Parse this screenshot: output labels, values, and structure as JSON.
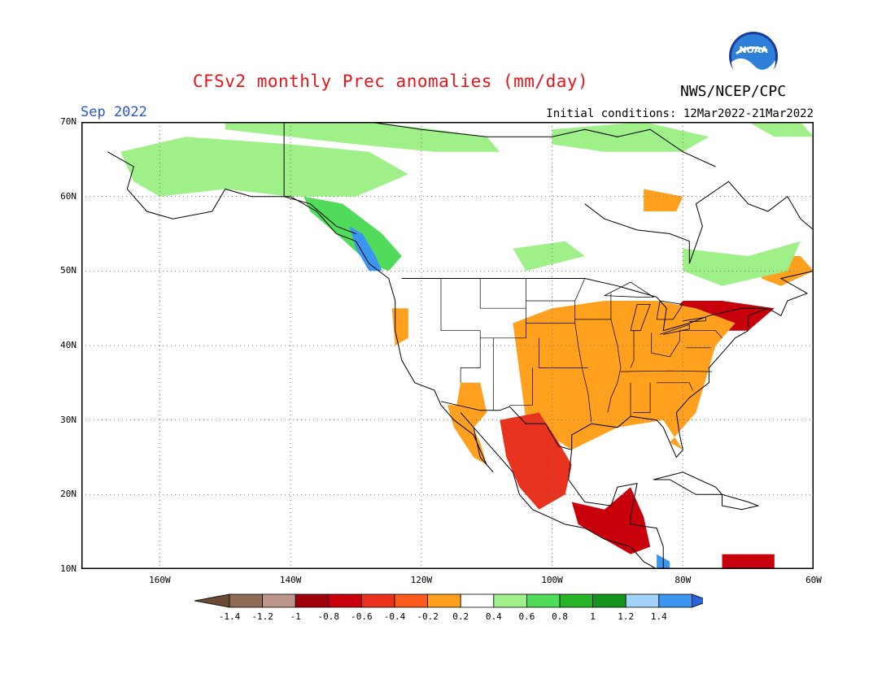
{
  "title": "CFSv2 monthly Prec anomalies (mm/day)",
  "agency": "NWS/NCEP/CPC",
  "logo_text": "NOAA",
  "target_month": "Sep 2022",
  "initial_conditions": "Initial conditions: 12Mar2022-21Mar2022",
  "lat_labels": [
    "70N",
    "60N",
    "50N",
    "40N",
    "30N",
    "20N",
    "10N"
  ],
  "lon_labels": [
    "160W",
    "140W",
    "120W",
    "100W",
    "80W",
    "60W"
  ],
  "extent": {
    "lon_min": -172,
    "lon_max": -60,
    "lat_min": 10,
    "lat_max": 70
  },
  "colorbar": {
    "labels": [
      "-1.4",
      "-1.2",
      "-1",
      "-0.8",
      "-0.6",
      "-0.4",
      "-0.2",
      "0.2",
      "0.4",
      "0.6",
      "0.8",
      "1",
      "1.2",
      "1.4"
    ],
    "colors": [
      "#6b4a36",
      "#8f6a54",
      "#bc958b",
      "#a0000a",
      "#c8000c",
      "#e8321e",
      "#ff5a1e",
      "#ffa01e",
      "#ffffff",
      "#a0f08a",
      "#50dc5a",
      "#28b428",
      "#14961e",
      "#a0d2fa",
      "#3c96f0",
      "#2864d8"
    ]
  },
  "anomaly_regions": [
    {
      "name": "southeast-us-strong-dry",
      "color": "#c8000c",
      "points": [
        [
          -97,
          40
        ],
        [
          -90,
          42
        ],
        [
          -84,
          40
        ],
        [
          -80,
          37
        ],
        [
          -81,
          33
        ],
        [
          -86,
          32
        ],
        [
          -93,
          33
        ],
        [
          -98,
          35
        ]
      ]
    },
    {
      "name": "central-us-dry",
      "color": "#e8321e",
      "points": [
        [
          -104,
          42
        ],
        [
          -98,
          43
        ],
        [
          -90,
          44
        ],
        [
          -82,
          43
        ],
        [
          -76,
          41
        ],
        [
          -76,
          37
        ],
        [
          -79,
          33
        ],
        [
          -85,
          31
        ],
        [
          -90,
          30
        ],
        [
          -97,
          28
        ],
        [
          -100,
          29
        ],
        [
          -104,
          33
        ]
      ]
    },
    {
      "name": "northeast-dry",
      "color": "#c8000c",
      "points": [
        [
          -80,
          46
        ],
        [
          -74,
          46
        ],
        [
          -66,
          45
        ],
        [
          -70,
          42
        ],
        [
          -76,
          42
        ],
        [
          -82,
          44
        ]
      ]
    },
    {
      "name": "great-plains-moderate",
      "color": "#ffa01e",
      "points": [
        [
          -106,
          43
        ],
        [
          -100,
          45
        ],
        [
          -92,
          46
        ],
        [
          -84,
          46
        ],
        [
          -78,
          45
        ],
        [
          -72,
          43
        ],
        [
          -75,
          40
        ],
        [
          -78,
          31
        ],
        [
          -82,
          27
        ],
        [
          -80,
          26
        ],
        [
          -83,
          30
        ],
        [
          -90,
          29
        ],
        [
          -97,
          26
        ],
        [
          -104,
          30
        ]
      ]
    },
    {
      "name": "mexico-dry",
      "color": "#e8321e",
      "points": [
        [
          -108,
          30
        ],
        [
          -102,
          31
        ],
        [
          -99,
          27
        ],
        [
          -97,
          24
        ],
        [
          -98,
          20
        ],
        [
          -102,
          18
        ],
        [
          -105,
          21
        ],
        [
          -107,
          25
        ]
      ]
    },
    {
      "name": "central-america-dry",
      "color": "#c8000c",
      "points": [
        [
          -97,
          19
        ],
        [
          -92,
          18
        ],
        [
          -88,
          21
        ],
        [
          -86,
          17
        ],
        [
          -85,
          13
        ],
        [
          -88,
          12
        ],
        [
          -92,
          14
        ],
        [
          -96,
          16
        ]
      ]
    },
    {
      "name": "west-coast-mild-dry",
      "color": "#ffa01e",
      "points": [
        [
          -124.5,
          45
        ],
        [
          -122,
          45
        ],
        [
          -122,
          41
        ],
        [
          -124,
          40
        ]
      ]
    },
    {
      "name": "southwest-mild-dry",
      "color": "#ffa01e",
      "points": [
        [
          -114,
          35
        ],
        [
          -111,
          35
        ],
        [
          -110,
          31
        ],
        [
          -113,
          28
        ],
        [
          -115,
          30
        ]
      ]
    },
    {
      "name": "baja-mild-dry",
      "color": "#ffa01e",
      "points": [
        [
          -116,
          32
        ],
        [
          -114,
          32
        ],
        [
          -111,
          27
        ],
        [
          -110,
          24
        ],
        [
          -112,
          25
        ],
        [
          -115,
          29
        ]
      ]
    },
    {
      "name": "quebec-dry",
      "color": "#ffa01e",
      "points": [
        [
          -67,
          52
        ],
        [
          -62,
          52
        ],
        [
          -60,
          50
        ],
        [
          -65,
          48
        ],
        [
          -68,
          49
        ]
      ]
    },
    {
      "name": "hudson-bay-dry",
      "color": "#ffa01e",
      "points": [
        [
          -86,
          61
        ],
        [
          -80,
          60
        ],
        [
          -81,
          58
        ],
        [
          -86,
          58
        ]
      ]
    },
    {
      "name": "caribbean-dry",
      "color": "#c8000c",
      "points": [
        [
          -74,
          12
        ],
        [
          -66,
          12
        ],
        [
          -66,
          10
        ],
        [
          -74,
          10
        ]
      ]
    },
    {
      "name": "alaska-wet",
      "color": "#a0f08a",
      "points": [
        [
          -166,
          66
        ],
        [
          -156,
          68
        ],
        [
          -140,
          67
        ],
        [
          -128,
          66
        ],
        [
          -122,
          63
        ],
        [
          -130,
          60
        ],
        [
          -140,
          60
        ],
        [
          -150,
          61
        ],
        [
          -160,
          60
        ],
        [
          -164,
          62
        ]
      ]
    },
    {
      "name": "arctic-wet",
      "color": "#a0f08a",
      "points": [
        [
          -150,
          70
        ],
        [
          -128,
          70
        ],
        [
          -118,
          69
        ],
        [
          -110,
          68
        ],
        [
          -108,
          66
        ],
        [
          -118,
          66
        ],
        [
          -130,
          67
        ],
        [
          -150,
          69
        ]
      ]
    },
    {
      "name": "canada-north-wet",
      "color": "#a0f08a",
      "points": [
        [
          -100,
          69
        ],
        [
          -86,
          70
        ],
        [
          -76,
          68
        ],
        [
          -80,
          66
        ],
        [
          -92,
          66
        ],
        [
          -100,
          67
        ]
      ]
    },
    {
      "name": "bc-coast-wet",
      "color": "#50dc5a",
      "points": [
        [
          -138,
          60
        ],
        [
          -132,
          59
        ],
        [
          -126,
          55
        ],
        [
          -123,
          52
        ],
        [
          -125,
          50
        ],
        [
          -128,
          51
        ],
        [
          -133,
          55
        ],
        [
          -137,
          58
        ]
      ]
    },
    {
      "name": "bc-coast-very-wet",
      "color": "#3c96f0",
      "points": [
        [
          -131,
          56
        ],
        [
          -129,
          55
        ],
        [
          -127,
          52
        ],
        [
          -126,
          50
        ],
        [
          -128,
          50
        ],
        [
          -130,
          53
        ]
      ]
    },
    {
      "name": "quebec-wet",
      "color": "#a0f08a",
      "points": [
        [
          -80,
          53
        ],
        [
          -70,
          52
        ],
        [
          -62,
          54
        ],
        [
          -64,
          50
        ],
        [
          -74,
          48
        ],
        [
          -80,
          50
        ]
      ]
    },
    {
      "name": "greenland-wet",
      "color": "#a0f08a",
      "points": [
        [
          -70,
          70
        ],
        [
          -62,
          70
        ],
        [
          -60,
          68
        ],
        [
          -66,
          68
        ]
      ]
    },
    {
      "name": "mid-canada-wet",
      "color": "#a0f08a",
      "points": [
        [
          -106,
          53
        ],
        [
          -98,
          54
        ],
        [
          -95,
          52
        ],
        [
          -104,
          50
        ]
      ]
    },
    {
      "name": "central-america-wet",
      "color": "#3c96f0",
      "points": [
        [
          -84,
          12
        ],
        [
          -82,
          11
        ],
        [
          -82,
          10
        ],
        [
          -84,
          10
        ]
      ]
    }
  ],
  "coastlines": [
    [
      [
        -168,
        66
      ],
      [
        -164,
        64
      ],
      [
        -165,
        61
      ],
      [
        -162,
        58
      ],
      [
        -158,
        57
      ],
      [
        -152,
        58
      ],
      [
        -150,
        61
      ],
      [
        -146,
        60
      ],
      [
        -140,
        60
      ],
      [
        -136,
        58
      ],
      [
        -133,
        55
      ],
      [
        -130,
        54
      ],
      [
        -128,
        51
      ],
      [
        -125,
        49
      ],
      [
        -124,
        46
      ],
      [
        -124,
        42
      ],
      [
        -123,
        38
      ],
      [
        -121,
        35
      ],
      [
        -118,
        34
      ],
      [
        -117,
        32
      ],
      [
        -115,
        30
      ],
      [
        -112,
        28
      ],
      [
        -110,
        24
      ],
      [
        -109,
        23
      ],
      [
        -111,
        25
      ],
      [
        -112,
        29
      ],
      [
        -114,
        31
      ],
      [
        -112,
        29
      ],
      [
        -109,
        26
      ],
      [
        -106,
        23
      ],
      [
        -105,
        20
      ],
      [
        -103,
        18
      ],
      [
        -98,
        16
      ],
      [
        -95,
        15.5
      ],
      [
        -92,
        14
      ],
      [
        -88,
        13
      ],
      [
        -86,
        11
      ],
      [
        -84,
        10
      ],
      [
        -83,
        8
      ]
    ],
    [
      [
        -97,
        26
      ],
      [
        -97,
        28
      ],
      [
        -94,
        29.5
      ],
      [
        -90,
        29
      ],
      [
        -88,
        30.5
      ],
      [
        -84,
        30
      ],
      [
        -83,
        29
      ],
      [
        -82,
        27
      ],
      [
        -81,
        25
      ],
      [
        -80,
        26
      ],
      [
        -80.5,
        28
      ],
      [
        -81,
        31
      ],
      [
        -79,
        33
      ],
      [
        -76,
        35
      ],
      [
        -76,
        37
      ],
      [
        -74,
        39
      ],
      [
        -72,
        41
      ],
      [
        -70,
        42
      ],
      [
        -70,
        44
      ],
      [
        -67,
        45
      ],
      [
        -65,
        44
      ],
      [
        -64,
        46
      ],
      [
        -61,
        47
      ],
      [
        -65,
        49
      ],
      [
        -60,
        50
      ]
    ],
    [
      [
        -97,
        26
      ],
      [
        -97.5,
        22
      ],
      [
        -95,
        19
      ],
      [
        -91,
        18.5
      ],
      [
        -90,
        21
      ],
      [
        -87,
        21.5
      ],
      [
        -88,
        17
      ],
      [
        -88,
        16
      ],
      [
        -84,
        15.5
      ],
      [
        -83,
        13
      ],
      [
        -83,
        10
      ]
    ],
    [
      [
        -95,
        59
      ],
      [
        -92,
        57
      ],
      [
        -87,
        55.5
      ],
      [
        -82,
        55
      ],
      [
        -79,
        54
      ],
      [
        -79,
        51
      ],
      [
        -77,
        56
      ],
      [
        -78,
        59
      ],
      [
        -73,
        62
      ],
      [
        -70,
        59
      ],
      [
        -67,
        58
      ],
      [
        -64,
        60
      ],
      [
        -62,
        57
      ],
      [
        -58,
        54
      ]
    ],
    [
      [
        -140,
        70
      ],
      [
        -128,
        70
      ],
      [
        -120,
        69
      ],
      [
        -110,
        68
      ],
      [
        -100,
        68
      ],
      [
        -95,
        69
      ],
      [
        -90,
        68
      ],
      [
        -85,
        69
      ],
      [
        -80,
        66
      ],
      [
        -75,
        64
      ]
    ],
    [
      [
        -84.5,
        22
      ],
      [
        -80,
        23
      ],
      [
        -75,
        21
      ],
      [
        -74,
        20
      ],
      [
        -78,
        20
      ],
      [
        -82,
        22
      ],
      [
        -84.5,
        22
      ]
    ],
    [
      [
        -74,
        20
      ],
      [
        -72,
        19.5
      ],
      [
        -70,
        19
      ],
      [
        -68.5,
        18.5
      ],
      [
        -71,
        18
      ],
      [
        -74,
        18.5
      ],
      [
        -74,
        20
      ]
    ]
  ],
  "borders": [
    [
      [
        -141,
        70
      ],
      [
        -141,
        60
      ],
      [
        -137,
        59
      ],
      [
        -133,
        56
      ],
      [
        -130,
        55
      ]
    ],
    [
      [
        -123,
        49
      ],
      [
        -95,
        49
      ],
      [
        -90,
        48
      ],
      [
        -84,
        46.5
      ],
      [
        -82.5,
        45
      ],
      [
        -83,
        42
      ],
      [
        -79,
        43
      ],
      [
        -76,
        44
      ],
      [
        -71,
        45
      ],
      [
        -67,
        45
      ]
    ],
    [
      [
        -117,
        32.5
      ],
      [
        -111,
        31.3
      ],
      [
        -108,
        31.3
      ],
      [
        -106.5,
        31.8
      ],
      [
        -104,
        29.5
      ],
      [
        -101,
        29.5
      ],
      [
        -99,
        26.5
      ],
      [
        -97,
        26
      ]
    ]
  ],
  "lakes": [
    [
      [
        -92,
        46.7
      ],
      [
        -88,
        48.5
      ],
      [
        -84.5,
        46.5
      ],
      [
        -87,
        46.5
      ],
      [
        -92,
        46.7
      ]
    ],
    [
      [
        -88,
        42
      ],
      [
        -87,
        45.5
      ],
      [
        -85,
        45.5
      ],
      [
        -86.5,
        42
      ],
      [
        -88,
        42
      ]
    ],
    [
      [
        -84,
        43.5
      ],
      [
        -83.5,
        46
      ],
      [
        -80,
        45.5
      ],
      [
        -81.5,
        43.5
      ],
      [
        -84,
        43.5
      ]
    ],
    [
      [
        -83.5,
        41.5
      ],
      [
        -79,
        42.8
      ],
      [
        -79,
        42.2
      ],
      [
        -83,
        41.5
      ]
    ],
    [
      [
        -80,
        43.3
      ],
      [
        -76.5,
        43.8
      ],
      [
        -76.5,
        43.3
      ],
      [
        -79,
        43.2
      ]
    ]
  ],
  "states": [
    [
      [
        -117,
        49
      ],
      [
        -117,
        42
      ],
      [
        -111,
        42
      ],
      [
        -111,
        37
      ],
      [
        -114,
        37
      ],
      [
        -114,
        35
      ]
    ],
    [
      [
        -111,
        49
      ],
      [
        -111,
        45
      ],
      [
        -104,
        45
      ],
      [
        -104,
        41
      ],
      [
        -111,
        41
      ]
    ],
    [
      [
        -104,
        49
      ],
      [
        -104,
        45
      ]
    ],
    [
      [
        -109,
        41
      ],
      [
        -109,
        31.3
      ]
    ],
    [
      [
        -103,
        37
      ],
      [
        -103,
        32
      ],
      [
        -106.5,
        32
      ]
    ],
    [
      [
        -102,
        41
      ],
      [
        -102,
        37
      ],
      [
        -94.5,
        37
      ]
    ],
    [
      [
        -95,
        49
      ],
      [
        -96.5,
        46
      ],
      [
        -96.5,
        43
      ],
      [
        -96,
        40
      ],
      [
        -95.3,
        36.5
      ],
      [
        -94.5,
        33.6
      ],
      [
        -94,
        29.7
      ]
    ],
    [
      [
        -104,
        43
      ],
      [
        -96.5,
        43
      ]
    ],
    [
      [
        -104,
        46
      ],
      [
        -96.5,
        46
      ]
    ],
    [
      [
        -91,
        47
      ],
      [
        -91,
        43.5
      ],
      [
        -90,
        40
      ],
      [
        -89.5,
        37
      ],
      [
        -90,
        35
      ],
      [
        -91,
        33
      ],
      [
        -91.5,
        31
      ]
    ],
    [
      [
        -91,
        43.5
      ],
      [
        -96.5,
        43.5
      ]
    ],
    [
      [
        -87.5,
        42
      ],
      [
        -87.5,
        38
      ],
      [
        -88,
        37
      ]
    ],
    [
      [
        -84.8,
        41.7
      ],
      [
        -84.8,
        39
      ],
      [
        -82,
        38.5
      ],
      [
        -80.5,
        40.6
      ],
      [
        -80.5,
        42
      ]
    ],
    [
      [
        -89.5,
        36.5
      ],
      [
        -82,
        36.6
      ],
      [
        -75.5,
        36.5
      ]
    ],
    [
      [
        -88,
        35
      ],
      [
        -88,
        30.5
      ]
    ],
    [
      [
        -85,
        35
      ],
      [
        -85,
        32
      ],
      [
        -85,
        31
      ],
      [
        -87.6,
        31
      ]
    ],
    [
      [
        -80.5,
        42
      ],
      [
        -75,
        42
      ],
      [
        -74,
        41
      ]
    ],
    [
      [
        -79.5,
        39.7
      ],
      [
        -75.7,
        39.7
      ]
    ],
    [
      [
        -84,
        35
      ],
      [
        -79,
        35
      ],
      [
        -78.5,
        34
      ]
    ]
  ]
}
